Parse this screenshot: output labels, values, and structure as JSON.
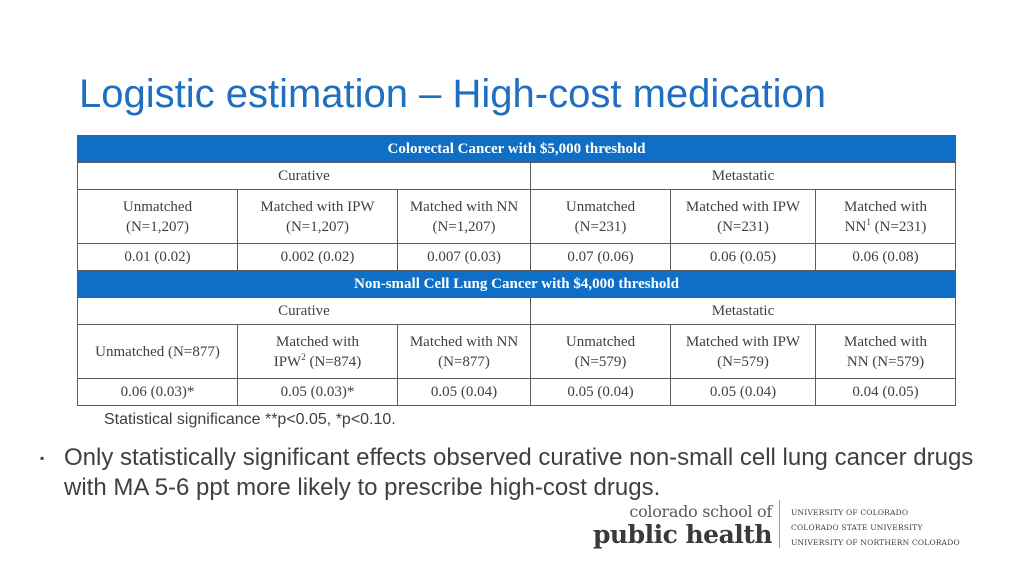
{
  "slide": {
    "title": "Logistic estimation – High-cost medication"
  },
  "table": {
    "section1": {
      "title": "Colorectal Cancer with $5,000 threshold",
      "group_left": "Curative",
      "group_right": "Metastatic",
      "headers": [
        {
          "line1": "Unmatched",
          "line2": "(N=1,207)"
        },
        {
          "line1": "Matched with IPW",
          "line2": "(N=1,207)"
        },
        {
          "line1": "Matched with NN",
          "line2": "(N=1,207)"
        },
        {
          "line1": "Unmatched",
          "line2": "(N=231)"
        },
        {
          "line1": "Matched with IPW",
          "line2": "(N=231)"
        },
        {
          "line1": "Matched with",
          "line2a": "NN",
          "sup": "1",
          "line2b": " (N=231)"
        }
      ],
      "values": [
        "0.01 (0.02)",
        "0.002 (0.02)",
        "0.007 (0.03)",
        "0.07 (0.06)",
        "0.06 (0.05)",
        "0.06 (0.08)"
      ]
    },
    "section2": {
      "title": "Non-small Cell Lung Cancer with $4,000 threshold",
      "group_left": "Curative",
      "group_right": "Metastatic",
      "headers": [
        {
          "line1": "Unmatched (N=877)"
        },
        {
          "line1": "Matched with",
          "line2a": "IPW",
          "sup": "2",
          "line2b": " (N=874)"
        },
        {
          "line1": "Matched with NN",
          "line2": "(N=877)"
        },
        {
          "line1": "Unmatched",
          "line2": "(N=579)"
        },
        {
          "line1": "Matched with IPW",
          "line2": "(N=579)"
        },
        {
          "line1": "Matched with",
          "line2": "NN (N=579)"
        }
      ],
      "values": [
        "0.06 (0.03)*",
        "0.05 (0.03)*",
        "0.05 (0.04)",
        "0.05 (0.04)",
        "0.05 (0.04)",
        "0.04 (0.05)"
      ]
    }
  },
  "footnote": "Statistical significance **p<0.05, *p<0.10.",
  "bullet": {
    "marker": "▪",
    "text": "Only statistically significant effects observed curative non-small cell lung cancer drugs with MA 5-6 ppt more likely to prescribe high-cost drugs."
  },
  "logo": {
    "line1": "colorado school of",
    "line2": "public health",
    "universities": [
      "UNIVERSITY OF COLORADO",
      "COLORADO STATE UNIVERSITY",
      "UNIVERSITY OF NORTHERN COLORADO"
    ]
  },
  "colors": {
    "title": "#1f6fc0",
    "table_header_bg": "#0f6fc6",
    "text": "#404040"
  }
}
